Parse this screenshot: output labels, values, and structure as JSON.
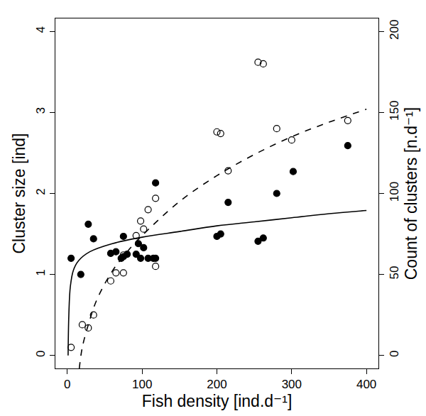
{
  "chart_data": {
    "type": "scatter",
    "x_label": "Fish density [ind.d⁻¹]",
    "y_label": "Cluster size [ind]",
    "y2_label": "Count of clusters [n.d⁻¹]",
    "xlim": [
      -16,
      416
    ],
    "xticks": [
      0,
      100,
      200,
      300,
      400
    ],
    "ylim": [
      -0.16,
      4.16
    ],
    "yticks": [
      0,
      1,
      2,
      3,
      4
    ],
    "y2lim": [
      -8,
      208
    ],
    "y2ticks": [
      0,
      50,
      100,
      150,
      200
    ],
    "grid": false,
    "series": [
      {
        "type": "scatter",
        "marker": "filled circle",
        "color": "#000000",
        "x": [
          5,
          18,
          28,
          35,
          58,
          65,
          72,
          75,
          75,
          80,
          92,
          95,
          98,
          102,
          108,
          115,
          118,
          118,
          200,
          205,
          215,
          255,
          262,
          280,
          302,
          375
        ],
        "values": [
          1.2,
          1.0,
          1.62,
          1.44,
          1.26,
          1.28,
          1.2,
          1.47,
          1.22,
          1.25,
          1.25,
          1.38,
          1.2,
          1.33,
          1.2,
          1.2,
          2.13,
          1.2,
          1.47,
          1.5,
          1.89,
          1.41,
          1.45,
          2.0,
          2.27,
          2.59
        ]
      },
      {
        "type": "scatter",
        "marker": "open circle",
        "color": "#000000",
        "axis": "y2",
        "x": [
          5,
          20,
          28,
          35,
          58,
          65,
          75,
          75,
          92,
          98,
          102,
          108,
          118,
          118,
          200,
          205,
          215,
          255,
          262,
          280,
          300,
          375
        ],
        "values": [
          5,
          19,
          17,
          25,
          46,
          51,
          51,
          62,
          74,
          83,
          78,
          90,
          97,
          55,
          138,
          137,
          114,
          181,
          180,
          140,
          133,
          145
        ]
      },
      {
        "type": "line",
        "line_style": "solid",
        "color": "#000000",
        "x": [
          1,
          2,
          4,
          8,
          15,
          30,
          60,
          100,
          150,
          200,
          250,
          300,
          350,
          400
        ],
        "values": [
          0,
          0.5,
          0.85,
          1.05,
          1.17,
          1.28,
          1.38,
          1.46,
          1.53,
          1.6,
          1.65,
          1.7,
          1.75,
          1.79
        ]
      },
      {
        "type": "line",
        "line_style": "dashed",
        "color": "#000000",
        "axis": "y2",
        "x": [
          16,
          20,
          30,
          40,
          60,
          80,
          100,
          150,
          200,
          250,
          300,
          350,
          400
        ],
        "values": [
          -8,
          5,
          22,
          35,
          52,
          64,
          74,
          95,
          111,
          124,
          135,
          144,
          152
        ]
      }
    ]
  }
}
